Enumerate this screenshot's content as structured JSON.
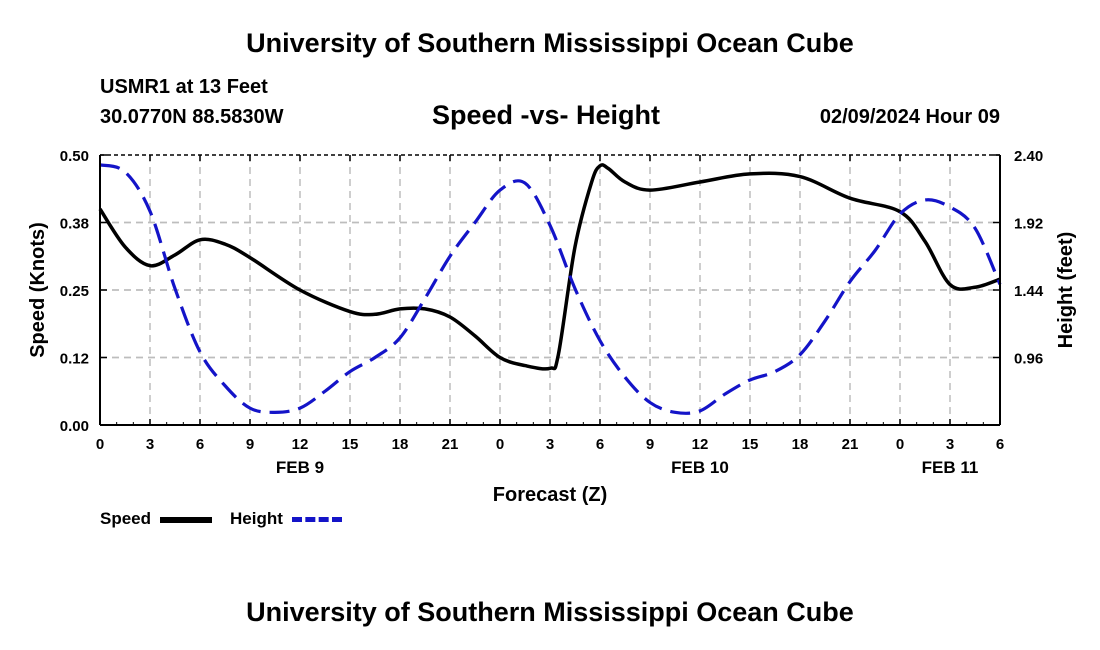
{
  "header": {
    "title": "University of Southern Mississippi Ocean Cube",
    "station": "USMR1 at 13 Feet",
    "coords": "30.0770N  88.5830W",
    "subtitle": "Speed -vs- Height",
    "datetime": "02/09/2024 Hour 09"
  },
  "footer": {
    "title": "University of Southern Mississippi Ocean Cube"
  },
  "legend": {
    "speed_label": "Speed",
    "height_label": "Height"
  },
  "colors": {
    "speed": "#000000",
    "height": "#1414c8",
    "grid": "#bdbdbd"
  },
  "chart_data": {
    "type": "line",
    "title": "Speed -vs- Height",
    "xlabel": "Forecast (Z)",
    "ylabel": "Speed (Knots)",
    "y2label": "Height (feet)",
    "x_range_hours": [
      0,
      54
    ],
    "x_ticks": [
      {
        "h": 0,
        "label": "0"
      },
      {
        "h": 3,
        "label": "3"
      },
      {
        "h": 6,
        "label": "6"
      },
      {
        "h": 9,
        "label": "9"
      },
      {
        "h": 12,
        "label": "12"
      },
      {
        "h": 15,
        "label": "15"
      },
      {
        "h": 18,
        "label": "18"
      },
      {
        "h": 21,
        "label": "21"
      },
      {
        "h": 24,
        "label": "0"
      },
      {
        "h": 27,
        "label": "3"
      },
      {
        "h": 30,
        "label": "6"
      },
      {
        "h": 33,
        "label": "9"
      },
      {
        "h": 36,
        "label": "12"
      },
      {
        "h": 39,
        "label": "15"
      },
      {
        "h": 42,
        "label": "18"
      },
      {
        "h": 45,
        "label": "21"
      },
      {
        "h": 48,
        "label": "0"
      },
      {
        "h": 51,
        "label": "3"
      },
      {
        "h": 54,
        "label": "6"
      }
    ],
    "date_labels": [
      {
        "h": 12,
        "label": "FEB 9"
      },
      {
        "h": 36,
        "label": "FEB 10"
      },
      {
        "h": 51,
        "label": "FEB 11"
      }
    ],
    "ylim": [
      0,
      0.5
    ],
    "y_ticks": [
      {
        "v": 0.0,
        "label": "0.00"
      },
      {
        "v": 0.125,
        "label": "0.12"
      },
      {
        "v": 0.25,
        "label": "0.25"
      },
      {
        "v": 0.375,
        "label": "0.38"
      },
      {
        "v": 0.5,
        "label": "0.50"
      }
    ],
    "y2lim": [
      0.48,
      2.4
    ],
    "y2_ticks": [
      {
        "v": 0.96,
        "label": "0.96"
      },
      {
        "v": 1.44,
        "label": "1.44"
      },
      {
        "v": 1.92,
        "label": "1.92"
      },
      {
        "v": 2.4,
        "label": "2.40"
      }
    ],
    "series": [
      {
        "name": "Speed",
        "axis": "left",
        "x": [
          0,
          1.5,
          3,
          4.5,
          6,
          7.5,
          9,
          12,
          15,
          16.5,
          18,
          19.5,
          21,
          22.5,
          24,
          25.5,
          27,
          27.5,
          28.5,
          29.5,
          30,
          30.5,
          31.5,
          33,
          36,
          39,
          42,
          45,
          48,
          49.5,
          51,
          52.5,
          54
        ],
        "values": [
          0.4,
          0.33,
          0.295,
          0.315,
          0.343,
          0.335,
          0.31,
          0.25,
          0.21,
          0.205,
          0.215,
          0.215,
          0.2,
          0.165,
          0.125,
          0.11,
          0.105,
          0.13,
          0.33,
          0.45,
          0.48,
          0.475,
          0.45,
          0.435,
          0.45,
          0.465,
          0.46,
          0.42,
          0.395,
          0.34,
          0.26,
          0.255,
          0.27
        ]
      },
      {
        "name": "Height",
        "axis": "right",
        "x": [
          0,
          1.5,
          3,
          4.5,
          6,
          7.5,
          9,
          10.5,
          12,
          13.5,
          15,
          16.5,
          18,
          19.5,
          21,
          22.5,
          24,
          25.5,
          27,
          28.5,
          30,
          31.5,
          33,
          34.5,
          36,
          37.5,
          39,
          40.5,
          42,
          43.5,
          45,
          46.5,
          48,
          49.5,
          51,
          52.5,
          54
        ],
        "values": [
          2.33,
          2.28,
          2.0,
          1.45,
          1.0,
          0.76,
          0.6,
          0.57,
          0.6,
          0.72,
          0.86,
          0.96,
          1.1,
          1.38,
          1.68,
          1.92,
          2.15,
          2.2,
          1.9,
          1.45,
          1.08,
          0.82,
          0.64,
          0.57,
          0.58,
          0.7,
          0.8,
          0.86,
          0.98,
          1.22,
          1.5,
          1.72,
          1.98,
          2.08,
          2.03,
          1.88,
          1.48
        ]
      }
    ]
  }
}
